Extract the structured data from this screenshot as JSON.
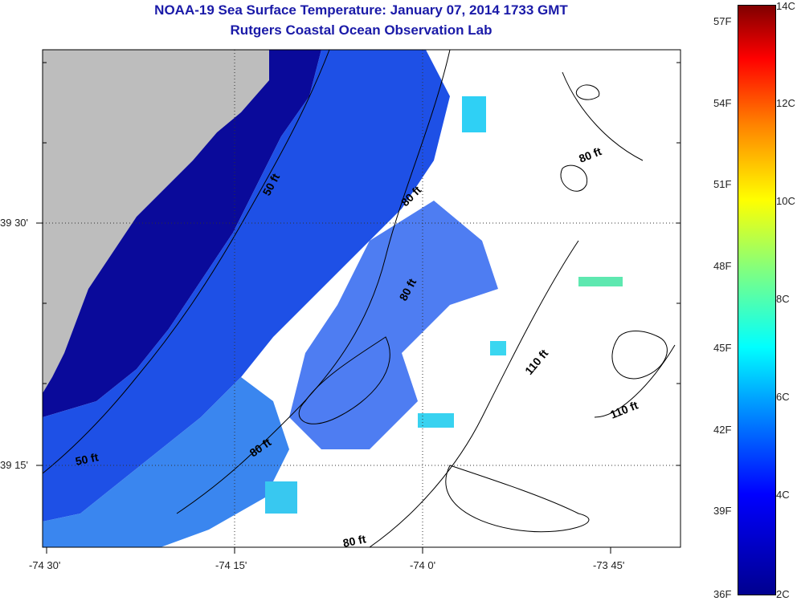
{
  "title_line1": "NOAA-19 Sea Surface Temperature:  January 07, 2014 1733 GMT",
  "title_line2": "Rutgers Coastal Ocean Observation Lab",
  "x_ticks": [
    "-74 30'",
    "-74 15'",
    "-74 0'",
    "-73 45'"
  ],
  "y_ticks": [
    "39 30'",
    "39 15'"
  ],
  "contour_labels": [
    "50 ft",
    "50 ft",
    "80 ft",
    "80 ft",
    "80 ft",
    "80 ft",
    "80 ft",
    "110 ft",
    "110 ft"
  ],
  "colorbar": {
    "fahrenheit": [
      "57F",
      "54F",
      "51F",
      "48F",
      "45F",
      "42F",
      "39F",
      "36F"
    ],
    "celsius": [
      "14C",
      "12C",
      "10C",
      "8C",
      "6C",
      "4C",
      "2C"
    ],
    "range_c": [
      2,
      14
    ]
  },
  "colors": {
    "land": "#bdbdbd",
    "title": "#1a1aa8"
  }
}
